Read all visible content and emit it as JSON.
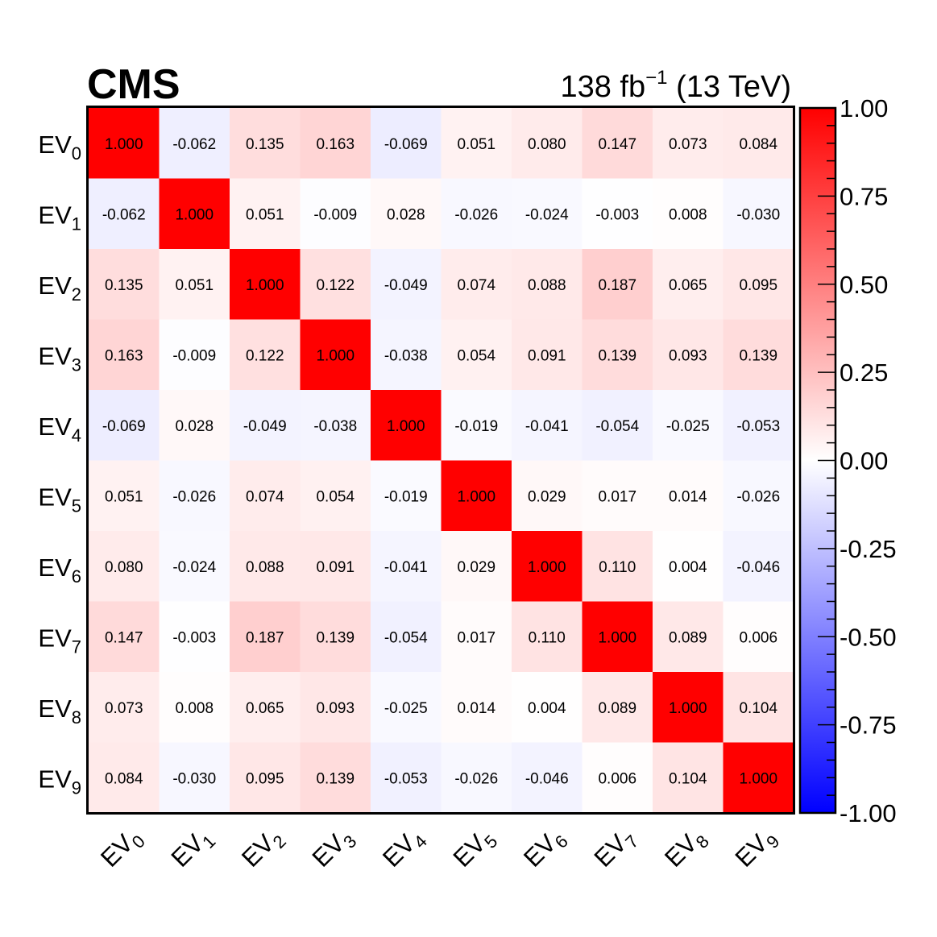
{
  "header": {
    "experiment": "CMS",
    "lumi_value": "138 fb",
    "lumi_exponent": "−1",
    "energy": "(13 TeV)"
  },
  "chart_data": {
    "type": "heatmap",
    "title": "",
    "xlabel": "",
    "ylabel": "",
    "labels": [
      {
        "base": "EV",
        "sub": "0"
      },
      {
        "base": "EV",
        "sub": "1"
      },
      {
        "base": "EV",
        "sub": "2"
      },
      {
        "base": "EV",
        "sub": "3"
      },
      {
        "base": "EV",
        "sub": "4"
      },
      {
        "base": "EV",
        "sub": "5"
      },
      {
        "base": "EV",
        "sub": "6"
      },
      {
        "base": "EV",
        "sub": "7"
      },
      {
        "base": "EV",
        "sub": "8"
      },
      {
        "base": "EV",
        "sub": "9"
      }
    ],
    "value_format_decimals": 3,
    "matrix": [
      [
        1.0,
        -0.062,
        0.135,
        0.163,
        -0.069,
        0.051,
        0.08,
        0.147,
        0.073,
        0.084
      ],
      [
        -0.062,
        1.0,
        0.051,
        -0.009,
        0.028,
        -0.026,
        -0.024,
        -0.003,
        0.008,
        -0.03
      ],
      [
        0.135,
        0.051,
        1.0,
        0.122,
        -0.049,
        0.074,
        0.088,
        0.187,
        0.065,
        0.095
      ],
      [
        0.163,
        -0.009,
        0.122,
        1.0,
        -0.038,
        0.054,
        0.091,
        0.139,
        0.093,
        0.139
      ],
      [
        -0.069,
        0.028,
        -0.049,
        -0.038,
        1.0,
        -0.019,
        -0.041,
        -0.054,
        -0.025,
        -0.053
      ],
      [
        0.051,
        -0.026,
        0.074,
        0.054,
        -0.019,
        1.0,
        0.029,
        0.017,
        0.014,
        -0.026
      ],
      [
        0.08,
        -0.024,
        0.088,
        0.091,
        -0.041,
        0.029,
        1.0,
        0.11,
        0.004,
        -0.046
      ],
      [
        0.147,
        -0.003,
        0.187,
        0.139,
        -0.054,
        0.017,
        0.11,
        1.0,
        0.089,
        0.006
      ],
      [
        0.073,
        0.008,
        0.065,
        0.093,
        -0.025,
        0.014,
        0.004,
        0.089,
        1.0,
        0.104
      ],
      [
        0.084,
        -0.03,
        0.095,
        0.139,
        -0.053,
        -0.026,
        -0.046,
        0.006,
        0.104,
        1.0
      ]
    ],
    "zlim": [
      -1.0,
      1.0
    ],
    "colorbar_ticks": [
      "1.00",
      "0.75",
      "0.50",
      "0.25",
      "0.00",
      "-0.25",
      "-0.50",
      "-0.75",
      "-1.00"
    ],
    "colorbar_tick_values": [
      1.0,
      0.75,
      0.5,
      0.25,
      0.0,
      -0.25,
      -0.5,
      -0.75,
      -1.0
    ],
    "colors": {
      "positive": "#ff0000",
      "neutral": "#ffffff",
      "negative": "#0000ff",
      "text": "#000000"
    },
    "grid": false
  }
}
